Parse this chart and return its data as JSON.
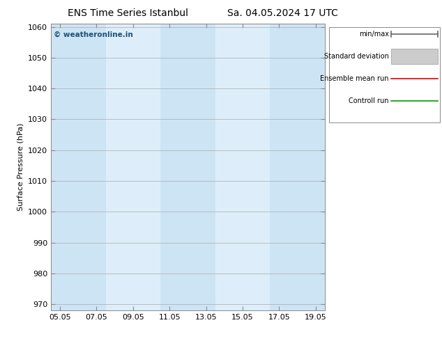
{
  "title_left": "ENS Time Series Istanbul",
  "title_right": "Sa. 04.05.2024 17 UTC",
  "ylabel": "Surface Pressure (hPa)",
  "ylim": [
    968,
    1061
  ],
  "yticks": [
    970,
    980,
    990,
    1000,
    1010,
    1020,
    1030,
    1040,
    1050,
    1060
  ],
  "xtick_labels": [
    "05.05",
    "07.05",
    "09.05",
    "11.05",
    "13.05",
    "15.05",
    "17.05",
    "19.05"
  ],
  "band_color_dark": "#cde4f5",
  "band_color_light": "#ddeefa",
  "plot_bg_color": "#ddeefa",
  "background_color": "#ffffff",
  "watermark_text": "© weatheronline.in",
  "watermark_color": "#1a5276",
  "legend_items": [
    {
      "label": "min/max",
      "color": "#666666",
      "lw": 1.2
    },
    {
      "label": "Standard deviation",
      "color": "#bbbbbb",
      "lw": 8
    },
    {
      "label": "Ensemble mean run",
      "color": "#dd0000",
      "lw": 1.2
    },
    {
      "label": "Controll run",
      "color": "#009900",
      "lw": 1.2
    }
  ],
  "figsize": [
    6.34,
    4.9
  ],
  "dpi": 100
}
